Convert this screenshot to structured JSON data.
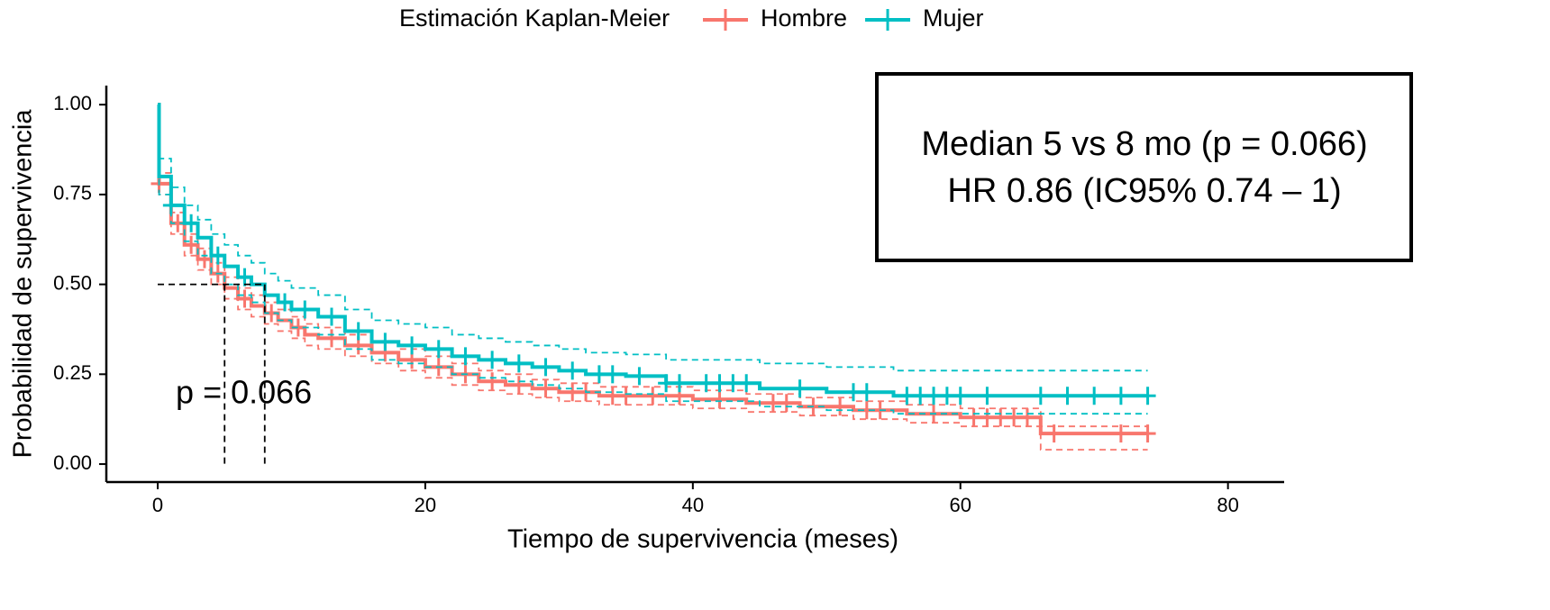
{
  "chart_data": {
    "type": "step",
    "legend_title": "Estimación Kaplan-Meier",
    "legend": "top",
    "x_label": "Tiempo de supervivencia (meses)",
    "y_label": "Probabilidad de supervivencia",
    "xlim": [
      -3.84,
      84.2
    ],
    "ylim": [
      -0.05,
      1.053
    ],
    "xticks": [
      0,
      20,
      40,
      60,
      80
    ],
    "yticks": [
      {
        "value": 0,
        "label": "0.00"
      },
      0.25,
      {
        "value": 0.5,
        "label": "0.50"
      },
      0.75,
      {
        "value": 1,
        "label": "1.00"
      }
    ],
    "series": [
      {
        "name": "Hombre",
        "color": "#F8766D",
        "x": [
          0,
          0.1,
          1,
          2,
          3,
          4,
          5,
          6,
          7,
          8,
          9,
          10,
          11,
          12,
          14,
          16,
          18,
          20,
          22,
          24,
          26,
          28,
          30,
          33,
          36,
          40,
          44,
          48,
          52,
          56,
          60,
          66,
          74
        ],
        "values": [
          1.0,
          0.78,
          0.67,
          0.61,
          0.57,
          0.53,
          0.49,
          0.46,
          0.44,
          0.42,
          0.4,
          0.38,
          0.36,
          0.35,
          0.33,
          0.31,
          0.29,
          0.27,
          0.25,
          0.23,
          0.22,
          0.21,
          0.2,
          0.19,
          0.19,
          0.18,
          0.17,
          0.16,
          0.15,
          0.14,
          0.13,
          0.085,
          0.085
        ],
        "upper": [
          1.0,
          0.81,
          0.7,
          0.64,
          0.6,
          0.56,
          0.52,
          0.49,
          0.47,
          0.45,
          0.43,
          0.41,
          0.39,
          0.38,
          0.36,
          0.34,
          0.32,
          0.3,
          0.28,
          0.26,
          0.25,
          0.235,
          0.225,
          0.215,
          0.215,
          0.205,
          0.195,
          0.185,
          0.175,
          0.165,
          0.155,
          0.105,
          0.105
        ],
        "lower": [
          1.0,
          0.75,
          0.64,
          0.58,
          0.54,
          0.5,
          0.46,
          0.43,
          0.41,
          0.39,
          0.37,
          0.35,
          0.33,
          0.32,
          0.3,
          0.28,
          0.26,
          0.24,
          0.22,
          0.205,
          0.195,
          0.185,
          0.175,
          0.165,
          0.165,
          0.155,
          0.145,
          0.135,
          0.125,
          0.115,
          0.105,
          0.04,
          0.04
        ],
        "censored": [
          0.1,
          1.5,
          2.5,
          3.5,
          4.5,
          6.5,
          8.5,
          10.5,
          13,
          15,
          17,
          19,
          21,
          23,
          25,
          27,
          29,
          31,
          32,
          34,
          35,
          37,
          39,
          42,
          46,
          47,
          49,
          51,
          53,
          54,
          58,
          61,
          62,
          63,
          64,
          65,
          67,
          72,
          74
        ]
      },
      {
        "name": "Mujer",
        "color": "#00BFC4",
        "x": [
          0,
          0.1,
          1,
          2,
          3,
          4,
          5,
          6,
          7,
          8,
          9,
          10,
          12,
          14,
          16,
          18,
          20,
          22,
          24,
          26,
          28,
          30,
          32,
          35,
          38,
          45,
          50,
          55,
          74
        ],
        "values": [
          1.0,
          0.8,
          0.72,
          0.67,
          0.63,
          0.58,
          0.55,
          0.52,
          0.5,
          0.47,
          0.45,
          0.43,
          0.41,
          0.37,
          0.34,
          0.33,
          0.32,
          0.3,
          0.29,
          0.28,
          0.27,
          0.26,
          0.25,
          0.245,
          0.225,
          0.21,
          0.2,
          0.19,
          0.19
        ],
        "upper": [
          1.0,
          0.85,
          0.77,
          0.72,
          0.68,
          0.64,
          0.61,
          0.58,
          0.56,
          0.53,
          0.51,
          0.49,
          0.47,
          0.43,
          0.4,
          0.39,
          0.38,
          0.36,
          0.35,
          0.34,
          0.33,
          0.32,
          0.31,
          0.305,
          0.29,
          0.28,
          0.27,
          0.26,
          0.26
        ],
        "lower": [
          1.0,
          0.75,
          0.67,
          0.62,
          0.58,
          0.53,
          0.5,
          0.47,
          0.45,
          0.42,
          0.4,
          0.38,
          0.36,
          0.32,
          0.29,
          0.28,
          0.27,
          0.25,
          0.24,
          0.23,
          0.22,
          0.21,
          0.2,
          0.195,
          0.175,
          0.16,
          0.15,
          0.14,
          0.14
        ],
        "censored": [
          1,
          2.5,
          4.5,
          6.5,
          9.5,
          11,
          13,
          15,
          17,
          19,
          21,
          23,
          25,
          27,
          29,
          31,
          33,
          34,
          36,
          38,
          39,
          41,
          42,
          43,
          44,
          48,
          52,
          53,
          56,
          57,
          58,
          59,
          60,
          62,
          66,
          68,
          70,
          72,
          74
        ]
      }
    ],
    "median_lines": {
      "y": 0.5,
      "x": [
        5,
        8
      ]
    },
    "annotation": {
      "text": "p = 0.066",
      "x": 1.35,
      "y": 0.193
    },
    "stats_box": [
      "Median 5 vs 8 mo (p = 0.066)",
      "HR 0.86 (IC95% 0.74 – 1)"
    ]
  }
}
